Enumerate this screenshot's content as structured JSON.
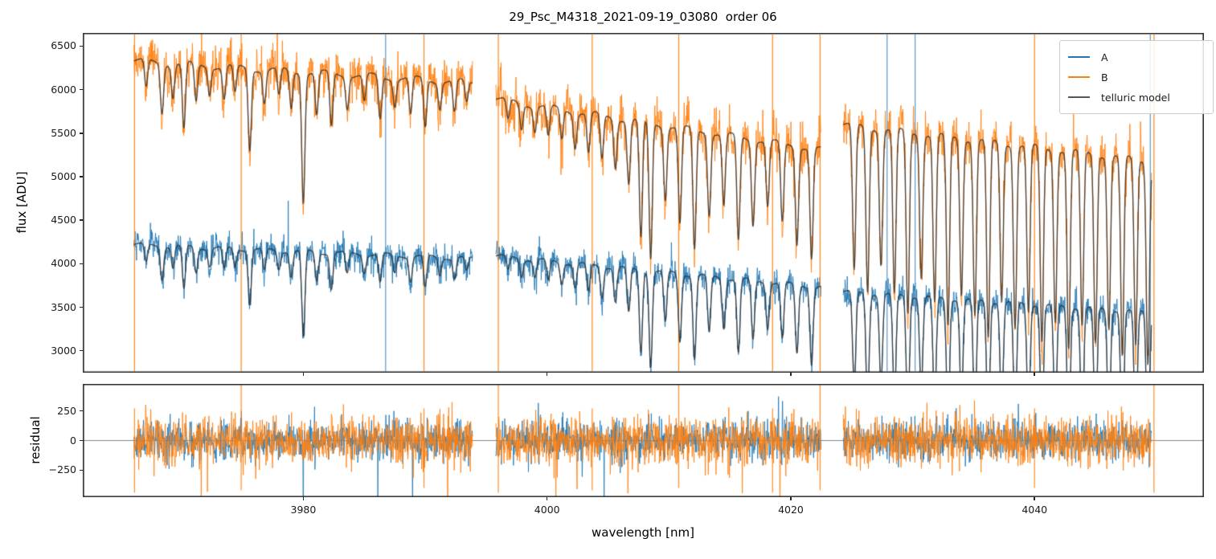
{
  "figure": {
    "title": "29_Psc_M4318_2021-09-19_03080  order 06",
    "xlabel": "wavelength [nm]",
    "flux_panel": {
      "ylabel": "flux [ADU]"
    },
    "residual_panel": {
      "ylabel": "residual"
    }
  },
  "legend": {
    "items": [
      {
        "label": "A",
        "color": "#1f77b4"
      },
      {
        "label": "B",
        "color": "#ff7f0e"
      },
      {
        "label": "telluric model",
        "color": "#555555"
      }
    ]
  },
  "chart_data": {
    "type": "line",
    "title": "29_Psc_M4318_2021-09-19_03080  order 06",
    "xlabel": "wavelength [nm]",
    "xlim": [
      3961.9,
      4053.9
    ],
    "xticks": [
      3980,
      4000,
      4020,
      4040
    ],
    "panels": [
      {
        "id": "flux",
        "ylabel": "flux [ADU]",
        "ylim": [
          2748,
          6652
        ],
        "yticks": [
          3000,
          3500,
          4000,
          4500,
          5000,
          5500,
          6000,
          6500
        ],
        "zero_line": false
      },
      {
        "id": "residual",
        "ylabel": "residual",
        "ylim": [
          -478,
          478
        ],
        "yticks": [
          -250,
          0,
          250
        ],
        "zero_line": true
      }
    ],
    "series": [
      {
        "name": "A",
        "color": "#1f77b4"
      },
      {
        "name": "B",
        "color": "#ff7f0e"
      },
      {
        "name": "telluric model",
        "color": "#555555"
      }
    ],
    "legend_position": "upper right",
    "segments": [
      {
        "wl_range": [
          3966.1,
          3993.9
        ],
        "B_flux": [
          6330,
          6080
        ],
        "A_flux": [
          4220,
          4060
        ],
        "telluric_lines": [
          [
            3967.1,
            0.05
          ],
          [
            3968.4,
            0.09
          ],
          [
            3969.3,
            0.06
          ],
          [
            3970.2,
            0.12
          ],
          [
            3971.2,
            0.07
          ],
          [
            3972.3,
            0.05
          ],
          [
            3973.5,
            0.06
          ],
          [
            3974.4,
            0.05
          ],
          [
            3975.6,
            0.15
          ],
          [
            3976.8,
            0.06
          ],
          [
            3978.0,
            0.05
          ],
          [
            3979.0,
            0.07
          ],
          [
            3980.0,
            0.24
          ],
          [
            3981.1,
            0.08
          ],
          [
            3982.3,
            0.1
          ],
          [
            3983.6,
            0.06
          ],
          [
            3985.0,
            0.05
          ],
          [
            3986.3,
            0.08
          ],
          [
            3987.5,
            0.05
          ],
          [
            3988.8,
            0.07
          ],
          [
            3990.0,
            0.09
          ],
          [
            3991.2,
            0.05
          ],
          [
            3992.4,
            0.06
          ],
          [
            3993.4,
            0.04
          ]
        ]
      },
      {
        "wl_range": [
          3995.8,
          4022.5
        ],
        "B_flux": [
          5890,
          5310
        ],
        "A_flux": [
          4090,
          3730
        ],
        "telluric_lines": [
          [
            3996.8,
            0.04
          ],
          [
            3997.9,
            0.05
          ],
          [
            3999.0,
            0.05
          ],
          [
            4000.1,
            0.06
          ],
          [
            4001.2,
            0.06
          ],
          [
            4002.3,
            0.07
          ],
          [
            4003.4,
            0.08
          ],
          [
            4004.5,
            0.09
          ],
          [
            4005.6,
            0.1
          ],
          [
            4006.7,
            0.13
          ],
          [
            4007.7,
            0.24
          ],
          [
            4008.5,
            0.28
          ],
          [
            4009.7,
            0.15
          ],
          [
            4010.9,
            0.2
          ],
          [
            4012.1,
            0.25
          ],
          [
            4013.3,
            0.17
          ],
          [
            4014.5,
            0.15
          ],
          [
            4015.7,
            0.22
          ],
          [
            4016.9,
            0.18
          ],
          [
            4018.1,
            0.14
          ],
          [
            4019.3,
            0.17
          ],
          [
            4020.5,
            0.21
          ],
          [
            4021.7,
            0.24
          ]
        ]
      },
      {
        "wl_range": [
          4024.3,
          4049.6
        ],
        "B_flux": [
          5600,
          5180
        ],
        "A_flux": [
          3680,
          3440
        ],
        "telluric_lines": [
          [
            4025.2,
            0.3
          ],
          [
            4026.3,
            0.34
          ],
          [
            4027.4,
            0.28
          ],
          [
            4028.5,
            0.34
          ],
          [
            4029.6,
            0.38
          ],
          [
            4030.7,
            0.3
          ],
          [
            4031.8,
            0.35
          ],
          [
            4032.9,
            0.4
          ],
          [
            4034.0,
            0.33
          ],
          [
            4035.1,
            0.37
          ],
          [
            4036.2,
            0.42
          ],
          [
            4037.3,
            0.34
          ],
          [
            4038.4,
            0.39
          ],
          [
            4039.5,
            0.36
          ],
          [
            4040.6,
            0.42
          ],
          [
            4041.7,
            0.37
          ],
          [
            4042.8,
            0.43
          ],
          [
            4043.9,
            0.38
          ],
          [
            4045.0,
            0.41
          ],
          [
            4046.1,
            0.38
          ],
          [
            4047.2,
            0.44
          ],
          [
            4048.3,
            0.41
          ],
          [
            4049.3,
            0.45
          ]
        ]
      }
    ],
    "telluric_line_sigma_nm": 0.13,
    "noise_adu": {
      "A": 85,
      "B": 130
    },
    "residual_noise_adu": {
      "A": 85,
      "B": 105
    },
    "bad_pixel_spikes": {
      "B": [
        3966.15,
        3974.9,
        3989.9,
        3996.0,
        4003.7,
        4010.8,
        4018.5,
        4022.4,
        4040.0,
        4049.8
      ],
      "A": [
        3986.75,
        4027.9,
        4030.2,
        4049.5
      ]
    }
  }
}
